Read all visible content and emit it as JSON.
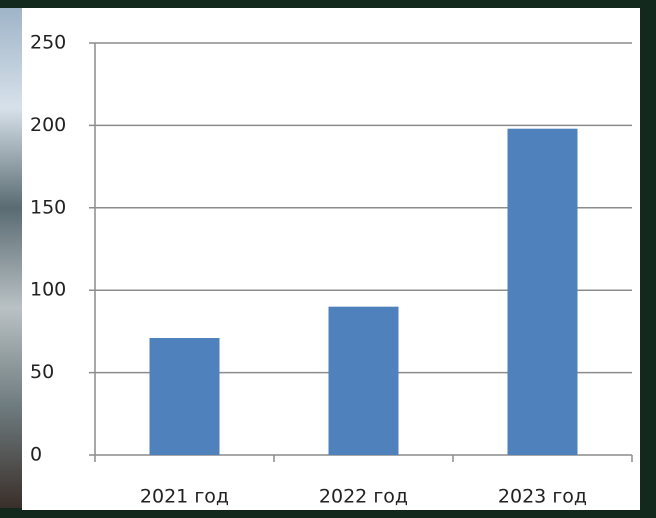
{
  "chart_data": {
    "type": "bar",
    "categories": [
      "2021 год",
      "2022 год",
      "2023 год"
    ],
    "values": [
      71,
      90,
      198
    ],
    "color": "#4f81bd",
    "ylim": [
      0,
      250
    ],
    "yticks": [
      0,
      50,
      100,
      150,
      200,
      250
    ],
    "grid": true
  }
}
